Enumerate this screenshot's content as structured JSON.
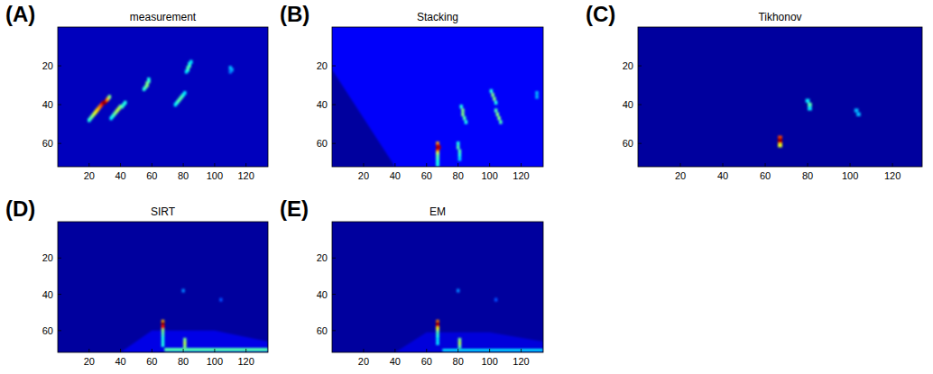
{
  "chart_data": [
    {
      "type": "heatmap",
      "label": "(A)",
      "title": "measurement",
      "xlim": [
        0,
        134
      ],
      "ylim": [
        0,
        72
      ],
      "xticks": [
        20,
        40,
        60,
        80,
        100,
        120
      ],
      "yticks": [
        20,
        40,
        60
      ],
      "clim": [
        0,
        1
      ],
      "background_value": 0.06,
      "regions": [],
      "cells": [
        [
          20,
          48,
          0.4
        ],
        [
          21,
          47,
          0.45
        ],
        [
          22,
          46,
          0.5
        ],
        [
          23,
          45,
          0.55
        ],
        [
          24,
          44,
          0.6
        ],
        [
          25,
          43,
          0.65
        ],
        [
          26,
          42,
          0.7
        ],
        [
          27,
          41,
          0.75
        ],
        [
          28,
          40,
          0.85
        ],
        [
          29,
          39,
          0.95
        ],
        [
          30,
          39,
          1.0
        ],
        [
          31,
          38,
          0.9
        ],
        [
          32,
          37,
          0.7
        ],
        [
          33,
          36,
          0.5
        ],
        [
          34,
          47,
          0.35
        ],
        [
          35,
          46,
          0.4
        ],
        [
          36,
          45,
          0.45
        ],
        [
          37,
          44,
          0.5
        ],
        [
          38,
          43,
          0.55
        ],
        [
          39,
          42,
          0.55
        ],
        [
          40,
          41,
          0.5
        ],
        [
          41,
          41,
          0.45
        ],
        [
          42,
          40,
          0.4
        ],
        [
          43,
          39,
          0.4
        ],
        [
          55,
          32,
          0.4
        ],
        [
          56,
          31,
          0.45
        ],
        [
          57,
          30,
          0.5
        ],
        [
          57,
          29,
          0.5
        ],
        [
          58,
          28,
          0.45
        ],
        [
          58,
          27,
          0.4
        ],
        [
          75,
          40,
          0.35
        ],
        [
          76,
          39,
          0.4
        ],
        [
          77,
          38,
          0.45
        ],
        [
          78,
          37,
          0.45
        ],
        [
          79,
          36,
          0.45
        ],
        [
          80,
          35,
          0.4
        ],
        [
          81,
          34,
          0.35
        ],
        [
          82,
          23,
          0.35
        ],
        [
          83,
          22,
          0.4
        ],
        [
          83,
          21,
          0.45
        ],
        [
          84,
          20,
          0.45
        ],
        [
          84,
          19,
          0.4
        ],
        [
          85,
          18,
          0.35
        ],
        [
          110,
          21,
          0.3
        ],
        [
          111,
          22,
          0.3
        ],
        [
          110,
          23,
          0.25
        ]
      ]
    },
    {
      "type": "heatmap",
      "label": "(B)",
      "title": "Stacking",
      "xlim": [
        0,
        134
      ],
      "ylim": [
        0,
        72
      ],
      "xticks": [
        20,
        40,
        60,
        80,
        100,
        120
      ],
      "yticks": [
        20,
        40,
        60
      ],
      "clim": [
        0,
        1
      ],
      "background_value": 0.12,
      "regions": [
        {
          "points": [
            [
              0,
              22
            ],
            [
              0,
              72
            ],
            [
              40,
              72
            ]
          ],
          "value": 0.03
        }
      ],
      "cells": [
        [
          67,
          60,
          0.7
        ],
        [
          67,
          61,
          0.85
        ],
        [
          67,
          62,
          1.0
        ],
        [
          68,
          62,
          0.95
        ],
        [
          67,
          63,
          0.95
        ],
        [
          67,
          64,
          0.85
        ],
        [
          67,
          65,
          0.6
        ],
        [
          67,
          66,
          0.5
        ],
        [
          67,
          67,
          0.45
        ],
        [
          67,
          68,
          0.45
        ],
        [
          67,
          69,
          0.4
        ],
        [
          67,
          70,
          0.4
        ],
        [
          67,
          71,
          0.4
        ],
        [
          80,
          60,
          0.4
        ],
        [
          80,
          62,
          0.45
        ],
        [
          81,
          64,
          0.45
        ],
        [
          81,
          66,
          0.4
        ],
        [
          81,
          68,
          0.35
        ],
        [
          82,
          41,
          0.4
        ],
        [
          83,
          43,
          0.5
        ],
        [
          83,
          45,
          0.5
        ],
        [
          84,
          47,
          0.45
        ],
        [
          85,
          49,
          0.4
        ],
        [
          101,
          33,
          0.4
        ],
        [
          102,
          35,
          0.5
        ],
        [
          103,
          37,
          0.5
        ],
        [
          104,
          39,
          0.4
        ],
        [
          104,
          43,
          0.45
        ],
        [
          105,
          45,
          0.5
        ],
        [
          106,
          47,
          0.5
        ],
        [
          107,
          49,
          0.45
        ],
        [
          130,
          34,
          0.3
        ],
        [
          130,
          36,
          0.3
        ]
      ]
    },
    {
      "type": "heatmap",
      "label": "(C)",
      "title": "Tikhonov",
      "xlim": [
        0,
        134
      ],
      "ylim": [
        0,
        72
      ],
      "xticks": [
        20,
        40,
        60,
        80,
        100,
        120
      ],
      "yticks": [
        20,
        40,
        60
      ],
      "clim": [
        0,
        1
      ],
      "background_value": 0.03,
      "regions": [],
      "cells": [
        [
          67,
          57,
          0.8
        ],
        [
          67,
          58,
          0.95
        ],
        [
          67,
          59,
          1.0
        ],
        [
          67,
          60,
          0.9
        ],
        [
          67,
          61,
          0.6
        ],
        [
          80,
          38,
          0.35
        ],
        [
          81,
          40,
          0.45
        ],
        [
          81,
          42,
          0.35
        ],
        [
          103,
          43,
          0.3
        ],
        [
          104,
          45,
          0.3
        ]
      ]
    },
    {
      "type": "heatmap",
      "label": "(D)",
      "title": "SIRT",
      "xlim": [
        0,
        134
      ],
      "ylim": [
        0,
        72
      ],
      "xticks": [
        20,
        40,
        60,
        80,
        100,
        120
      ],
      "yticks": [
        20,
        40,
        60
      ],
      "clim": [
        0,
        1
      ],
      "background_value": 0.03,
      "regions": [
        {
          "points": [
            [
              40,
              72
            ],
            [
              60,
              60
            ],
            [
              100,
              60
            ],
            [
              134,
              66
            ],
            [
              134,
              72
            ]
          ],
          "value": 0.1
        },
        {
          "points": [
            [
              68,
              69.5
            ],
            [
              134,
              69.5
            ],
            [
              134,
              71.5
            ],
            [
              68,
              71.5
            ]
          ],
          "value": 0.45
        }
      ],
      "cells": [
        [
          67,
          55,
          0.7
        ],
        [
          67,
          56,
          0.95
        ],
        [
          67,
          57,
          1.0
        ],
        [
          67,
          58,
          0.85
        ],
        [
          67,
          60,
          0.5
        ],
        [
          67,
          62,
          0.45
        ],
        [
          67,
          64,
          0.4
        ],
        [
          67,
          66,
          0.4
        ],
        [
          67,
          68,
          0.4
        ],
        [
          81,
          65,
          0.5
        ],
        [
          81,
          67,
          0.55
        ],
        [
          81,
          69,
          0.5
        ],
        [
          80,
          38,
          0.25
        ],
        [
          104,
          43,
          0.2
        ]
      ]
    },
    {
      "type": "heatmap",
      "label": "(E)",
      "title": "EM",
      "xlim": [
        0,
        134
      ],
      "ylim": [
        0,
        72
      ],
      "xticks": [
        20,
        40,
        60,
        80,
        100,
        120
      ],
      "yticks": [
        20,
        40,
        60
      ],
      "clim": [
        0,
        1
      ],
      "background_value": 0.03,
      "regions": [
        {
          "points": [
            [
              40,
              72
            ],
            [
              60,
              61
            ],
            [
              100,
              61
            ],
            [
              134,
              66
            ],
            [
              134,
              72
            ]
          ],
          "value": 0.09
        },
        {
          "points": [
            [
              70,
              70
            ],
            [
              134,
              70
            ],
            [
              134,
              71.5
            ],
            [
              70,
              71.5
            ]
          ],
          "value": 0.35
        }
      ],
      "cells": [
        [
          67,
          55,
          0.75
        ],
        [
          67,
          56,
          0.95
        ],
        [
          67,
          57,
          1.0
        ],
        [
          67,
          58,
          0.85
        ],
        [
          67,
          59,
          0.6
        ],
        [
          67,
          61,
          0.45
        ],
        [
          67,
          63,
          0.4
        ],
        [
          67,
          65,
          0.35
        ],
        [
          67,
          67,
          0.35
        ],
        [
          81,
          65,
          0.5
        ],
        [
          81,
          67,
          0.55
        ],
        [
          81,
          69,
          0.45
        ],
        [
          80,
          38,
          0.25
        ],
        [
          104,
          43,
          0.2
        ]
      ]
    }
  ]
}
